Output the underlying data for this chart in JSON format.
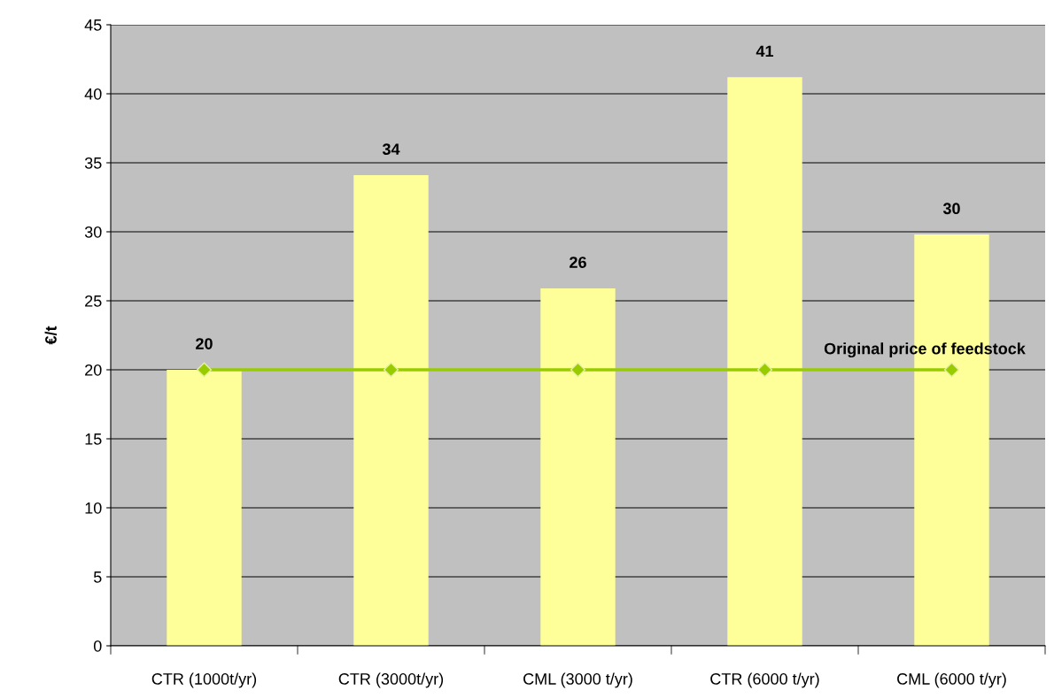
{
  "chart_data": {
    "type": "bar",
    "ylabel": "€/t",
    "categories": [
      "CTR (1000t/yr)",
      "CTR (3000t/yr)",
      "CML (3000 t/yr)",
      "CTR (6000 t/yr)",
      "CML (6000 t/yr)"
    ],
    "series": [
      {
        "color": "#ffff99",
        "values": [
          20,
          34.1,
          25.9,
          41.2,
          29.8
        ],
        "value_labels": [
          "20",
          "34",
          "26",
          "41",
          "30"
        ]
      },
      {
        "type": "line",
        "name": "Original price of feedstock",
        "color": "#99cc00",
        "marker": "diamond",
        "line_style": "solid",
        "values": [
          20,
          20,
          20,
          20,
          20
        ]
      }
    ],
    "ylim": [
      0,
      45
    ],
    "yticks": [
      0,
      5,
      10,
      15,
      20,
      25,
      30,
      35,
      40,
      45
    ],
    "grid": "y",
    "legend": false
  }
}
